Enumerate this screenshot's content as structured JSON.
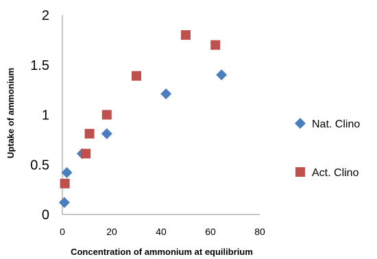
{
  "chart_data": {
    "type": "scatter",
    "xlabel": "Concentration  of ammonium  at equilibrium",
    "ylabel": "Uptake of ammonium",
    "xlim": [
      0,
      80
    ],
    "ylim": [
      0,
      2
    ],
    "x_ticks": [
      "0",
      "20",
      "40",
      "60",
      "80"
    ],
    "y_ticks": [
      "0",
      "0.5",
      "1",
      "1.5",
      "2"
    ],
    "x_tick_values": [
      0,
      20,
      40,
      60,
      80
    ],
    "y_tick_values": [
      0,
      0.5,
      1,
      1.5,
      2
    ],
    "grid": false,
    "legend_position": "right",
    "series": [
      {
        "name": "Nat. Clino",
        "marker": "diamond",
        "color": "#4a7ebf",
        "x": [
          0.8,
          1.8,
          8,
          18,
          42,
          64.5
        ],
        "y": [
          0.12,
          0.42,
          0.61,
          0.81,
          1.21,
          1.4
        ]
      },
      {
        "name": "Act. Clino",
        "marker": "square",
        "color": "#c0504d",
        "x": [
          1,
          9.5,
          11,
          18,
          30,
          50,
          62
        ],
        "y": [
          0.31,
          0.61,
          0.81,
          1.0,
          1.39,
          1.8,
          1.7
        ]
      }
    ]
  }
}
